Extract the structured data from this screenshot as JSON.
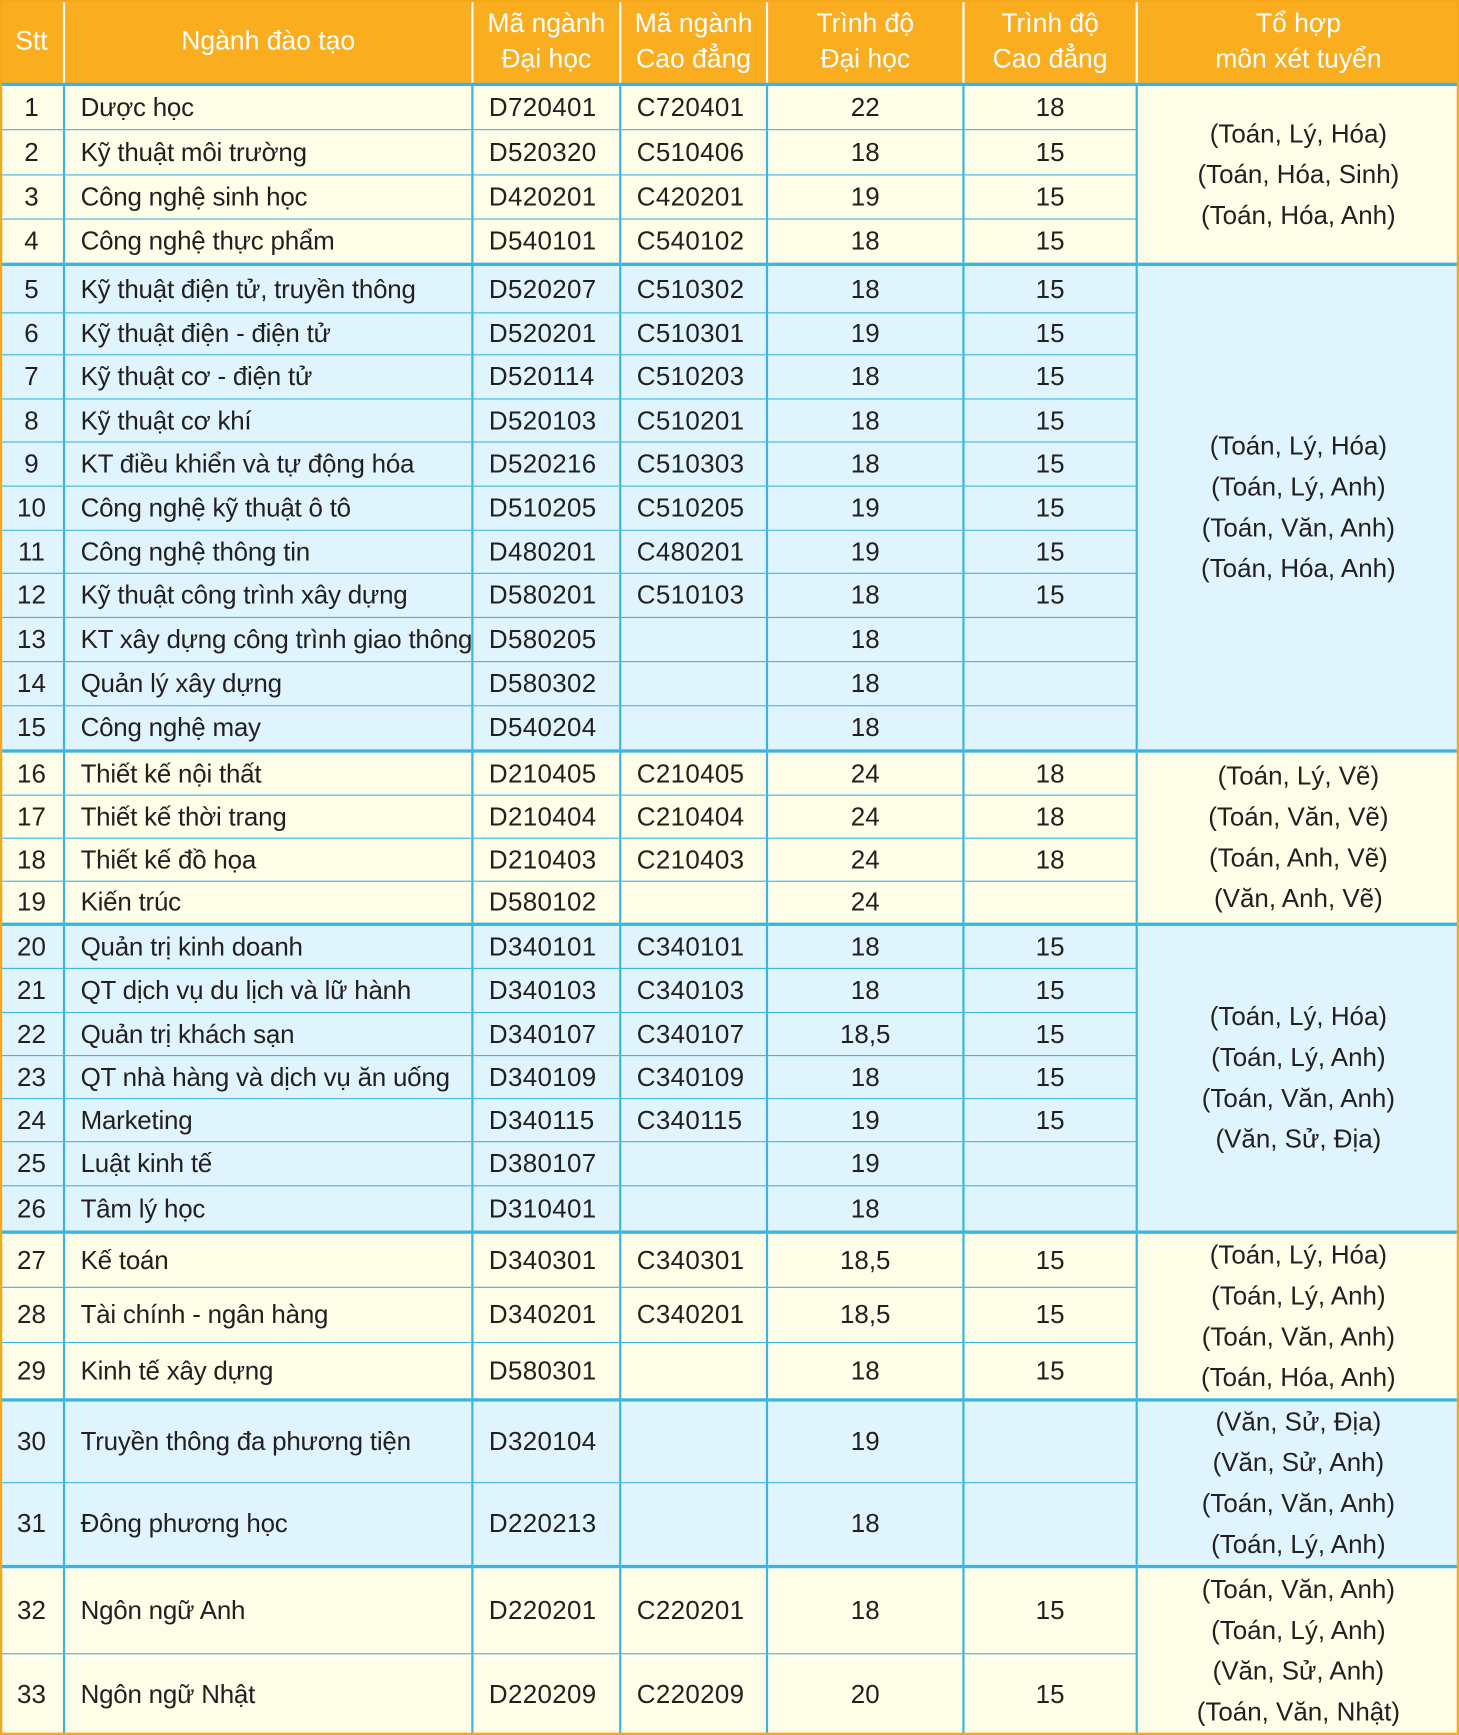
{
  "header": [
    "Stt",
    "Ngành đào tạo",
    "Mã ngành\nĐại học",
    "Mã ngành\nCao đẳng",
    "Trình độ\nĐại học",
    "Trình độ\nCao đẳng",
    "Tổ hợp\nmôn xét tuyển"
  ],
  "colors": {
    "header_bg": "#f9ad1f",
    "border": "#3ab4e0",
    "row_yellow": "#fefde8",
    "row_blue": "#dff4fc"
  },
  "groups": [
    {
      "tone": "yellow",
      "combos": [
        "(Toán, Lý, Hóa)",
        "(Toán, Hóa, Sinh)",
        "(Toán, Hóa, Anh)"
      ],
      "rows": [
        [
          "1",
          "Dược học",
          "D720401",
          "C720401",
          "22",
          "18"
        ],
        [
          "2",
          "Kỹ thuật môi trường",
          "D520320",
          "C510406",
          "18",
          "15"
        ],
        [
          "3",
          "Công nghệ sinh học",
          "D420201",
          "C420201",
          "19",
          "15"
        ],
        [
          "4",
          "Công nghệ thực phẩm",
          "D540101",
          "C540102",
          "18",
          "15"
        ]
      ]
    },
    {
      "tone": "blue",
      "combos": [
        "(Toán, Lý, Hóa)",
        "(Toán, Lý, Anh)",
        "(Toán, Văn, Anh)",
        "(Toán, Hóa, Anh)"
      ],
      "rows": [
        [
          "5",
          "Kỹ thuật điện tử, truyền thông",
          "D520207",
          "C510302",
          "18",
          "15"
        ],
        [
          "6",
          "Kỹ thuật điện - điện tử",
          "D520201",
          "C510301",
          "19",
          "15"
        ],
        [
          "7",
          "Kỹ thuật cơ - điện tử",
          "D520114",
          "C510203",
          "18",
          "15"
        ],
        [
          "8",
          "Kỹ thuật cơ khí",
          "D520103",
          "C510201",
          "18",
          "15"
        ],
        [
          "9",
          "KT điều khiển và tự động hóa",
          "D520216",
          "C510303",
          "18",
          "15"
        ],
        [
          "10",
          "Công nghệ kỹ thuật ô tô",
          "D510205",
          "C510205",
          "19",
          "15"
        ],
        [
          "11",
          "Công nghệ thông tin",
          "D480201",
          "C480201",
          "19",
          "15"
        ],
        [
          "12",
          "Kỹ thuật công trình xây dựng",
          "D580201",
          "C510103",
          "18",
          "15"
        ],
        [
          "13",
          "KT xây dựng công trình giao thông",
          "D580205",
          "",
          "18",
          ""
        ],
        [
          "14",
          "Quản lý xây dựng",
          "D580302",
          "",
          "18",
          ""
        ],
        [
          "15",
          "Công nghệ may",
          "D540204",
          "",
          "18",
          ""
        ]
      ]
    },
    {
      "tone": "yellow",
      "combos": [
        "(Toán, Lý, Vẽ)",
        "(Toán, Văn, Vẽ)",
        "(Toán, Anh, Vẽ)",
        "(Văn, Anh, Vẽ)"
      ],
      "rows": [
        [
          "16",
          "Thiết kế nội thất",
          "D210405",
          "C210405",
          "24",
          "18"
        ],
        [
          "17",
          "Thiết kế thời trang",
          "D210404",
          "C210404",
          "24",
          "18"
        ],
        [
          "18",
          "Thiết kế đồ họa",
          "D210403",
          "C210403",
          "24",
          "18"
        ],
        [
          "19",
          "Kiến trúc",
          "D580102",
          "",
          "24",
          ""
        ]
      ]
    },
    {
      "tone": "blue",
      "combos": [
        "(Toán, Lý, Hóa)",
        "(Toán, Lý, Anh)",
        "(Toán, Văn, Anh)",
        "(Văn, Sử, Địa)"
      ],
      "rows": [
        [
          "20",
          "Quản trị kinh doanh",
          "D340101",
          "C340101",
          "18",
          "15"
        ],
        [
          "21",
          "QT dịch vụ du lịch và lữ hành",
          "D340103",
          "C340103",
          "18",
          "15"
        ],
        [
          "22",
          "Quản trị khách sạn",
          "D340107",
          "C340107",
          "18,5",
          "15"
        ],
        [
          "23",
          "QT nhà hàng và dịch vụ ăn uống",
          "D340109",
          "C340109",
          "18",
          "15"
        ],
        [
          "24",
          "Marketing",
          "D340115",
          "C340115",
          "19",
          "15"
        ],
        [
          "25",
          "Luật kinh tế",
          "D380107",
          "",
          "19",
          ""
        ],
        [
          "26",
          "Tâm lý học",
          "D310401",
          "",
          "18",
          ""
        ]
      ]
    },
    {
      "tone": "yellow",
      "combos": [
        "(Toán, Lý, Hóa)",
        "(Toán, Lý, Anh)",
        "(Toán, Văn, Anh)",
        "(Toán, Hóa, Anh)"
      ],
      "rows": [
        [
          "27",
          "Kế toán",
          "D340301",
          "C340301",
          "18,5",
          "15"
        ],
        [
          "28",
          "Tài chính - ngân hàng",
          "D340201",
          "C340201",
          "18,5",
          "15"
        ],
        [
          "29",
          "Kinh tế xây dựng",
          "D580301",
          "",
          "18",
          "15"
        ]
      ]
    },
    {
      "tone": "blue",
      "combos": [
        "(Văn, Sử, Địa)",
        "(Văn, Sử, Anh)",
        "(Toán, Văn, Anh)",
        "(Toán, Lý, Anh)"
      ],
      "rows": [
        [
          "30",
          "Truyền thông đa phương tiện",
          "D320104",
          "",
          "19",
          ""
        ],
        [
          "31",
          "Đông phương học",
          "D220213",
          "",
          "18",
          ""
        ]
      ]
    },
    {
      "tone": "yellow",
      "combos": [
        "(Toán, Văn, Anh)",
        "(Toán, Lý, Anh)",
        "(Văn, Sử, Anh)",
        "(Toán, Văn, Nhật)"
      ],
      "rows": [
        [
          "32",
          "Ngôn ngữ Anh",
          "D220201",
          "C220201",
          "18",
          "15"
        ],
        [
          "33",
          "Ngôn ngữ Nhật",
          "D220209",
          "C220209",
          "20",
          "15"
        ]
      ]
    }
  ]
}
